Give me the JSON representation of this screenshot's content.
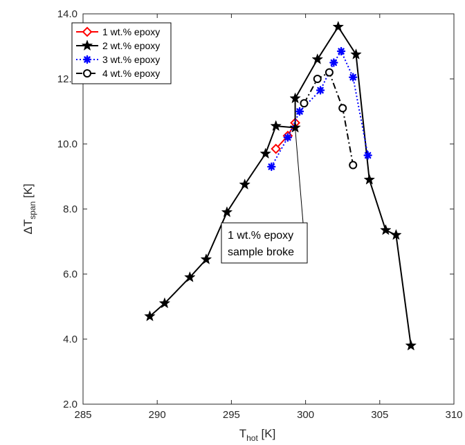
{
  "chart_data": {
    "type": "line",
    "title": "",
    "xlabel": {
      "main": "T",
      "sub": "hot",
      "unit": " [K]"
    },
    "ylabel": {
      "main": "ΔT",
      "sub": "span",
      "unit": " [K]"
    },
    "xlim": [
      285,
      310
    ],
    "ylim": [
      2,
      14
    ],
    "x_ticks": [
      285,
      290,
      295,
      300,
      305,
      310
    ],
    "y_ticks": [
      2,
      4,
      6,
      8,
      10,
      12,
      14
    ],
    "x_tick_labels": [
      "285",
      "290",
      "295",
      "300",
      "305",
      "310"
    ],
    "y_tick_labels": [
      "2.0",
      "4.0",
      "6.0",
      "8.0",
      "10.0",
      "12.0",
      "14.0"
    ],
    "grid": false,
    "legend_position": "top-left",
    "series": [
      {
        "name": "1 wt.% epoxy",
        "color": "#ff0000",
        "marker": "diamond",
        "line": "solid",
        "points": [
          [
            298.0,
            9.85
          ],
          [
            298.8,
            10.25
          ],
          [
            299.3,
            10.65
          ]
        ]
      },
      {
        "name": "2 wt.% epoxy",
        "color": "#000000",
        "marker": "star",
        "line": "solid",
        "points": [
          [
            289.5,
            4.7
          ],
          [
            290.5,
            5.1
          ],
          [
            292.2,
            5.9
          ],
          [
            293.3,
            6.45
          ],
          [
            294.7,
            7.9
          ],
          [
            295.9,
            8.75
          ],
          [
            297.3,
            9.7
          ],
          [
            298.0,
            10.55
          ],
          [
            299.3,
            10.5
          ],
          [
            299.3,
            11.4
          ],
          [
            300.8,
            12.6
          ],
          [
            302.2,
            13.6
          ],
          [
            303.4,
            12.75
          ],
          [
            304.3,
            8.9
          ],
          [
            305.4,
            7.35
          ],
          [
            306.1,
            7.2
          ],
          [
            307.1,
            3.8
          ]
        ]
      },
      {
        "name": "3 wt.% epoxy",
        "color": "#0000ff",
        "marker": "asterisk",
        "line": "dotted",
        "points": [
          [
            297.7,
            9.3
          ],
          [
            298.8,
            10.2
          ],
          [
            299.6,
            11.0
          ],
          [
            301.0,
            11.65
          ],
          [
            301.9,
            12.5
          ],
          [
            302.4,
            12.85
          ],
          [
            303.2,
            12.05
          ],
          [
            304.2,
            9.65
          ]
        ]
      },
      {
        "name": "4 wt.% epoxy",
        "color": "#000000",
        "marker": "circle",
        "line": "dashdot",
        "points": [
          [
            299.9,
            11.25
          ],
          [
            300.8,
            12.0
          ],
          [
            301.6,
            12.2
          ],
          [
            302.5,
            11.1
          ],
          [
            303.2,
            9.35
          ]
        ]
      }
    ],
    "annotations": [
      {
        "lines": [
          "1 wt.% epoxy",
          "sample broke"
        ],
        "points_to": [
          299.3,
          10.65
        ]
      }
    ]
  }
}
